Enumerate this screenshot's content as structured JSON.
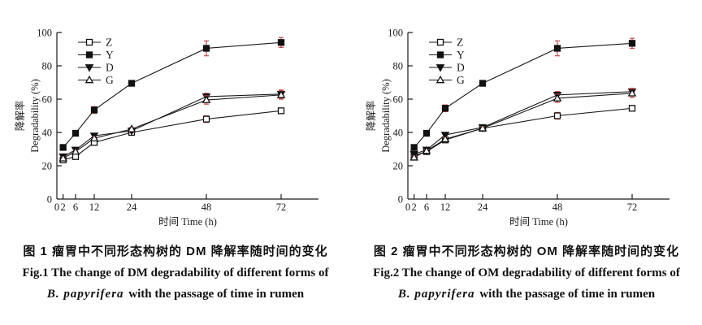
{
  "colors": {
    "line": "#1a1a1a",
    "marker_fill": "#111111",
    "marker_open_fill": "#ffffff",
    "error_bar": "#cf4545",
    "text": "#1a1a1a",
    "background": "#ffffff"
  },
  "chart_data": [
    {
      "type": "line",
      "x": [
        2,
        6,
        12,
        24,
        48,
        72
      ],
      "x_ticks": [
        0,
        2,
        6,
        12,
        24,
        48,
        72
      ],
      "xlim": [
        0,
        84
      ],
      "y_ticks": [
        0,
        20,
        40,
        60,
        80,
        100
      ],
      "ylim": [
        0,
        100
      ],
      "xlabel": "时间  Time (h)",
      "ylabel_cn": "降解率",
      "ylabel_en": "Degradability (%)",
      "grid": false,
      "legend_position": "top-left",
      "series": [
        {
          "name": "Z",
          "marker": "square-open",
          "values": [
            23.5,
            25.5,
            34,
            40,
            48,
            53
          ],
          "errors": [
            0.8,
            0.8,
            1.2,
            1,
            2,
            1.2
          ]
        },
        {
          "name": "Y",
          "marker": "square-filled",
          "values": [
            31,
            39.5,
            53.5,
            69.5,
            90.5,
            94
          ],
          "errors": [
            0.8,
            0.8,
            2,
            1,
            4.5,
            3
          ]
        },
        {
          "name": "D",
          "marker": "triangle-down-filled",
          "values": [
            25.5,
            29.5,
            38,
            41,
            61.5,
            63
          ],
          "errors": [
            0.8,
            0.8,
            1.2,
            1,
            2,
            2.5
          ]
        },
        {
          "name": "G",
          "marker": "triangle-up-open",
          "values": [
            24.5,
            28.5,
            36.5,
            42,
            59.5,
            62.5
          ],
          "errors": [
            0.8,
            0.8,
            1.2,
            1,
            2.5,
            2.5
          ]
        }
      ],
      "caption": {
        "cn": "图 1  瘤胃中不同形态构树的 DM 降解率随时间的变化",
        "en_line1": "Fig.1  The change of DM degradability of different forms of",
        "en_species": "B. papyrifera",
        "en_line2_rest": " with the passage of time in rumen"
      }
    },
    {
      "type": "line",
      "x": [
        2,
        6,
        12,
        24,
        48,
        72
      ],
      "x_ticks": [
        0,
        2,
        6,
        12,
        24,
        48,
        72
      ],
      "xlim": [
        0,
        84
      ],
      "y_ticks": [
        0,
        20,
        40,
        60,
        80,
        100
      ],
      "ylim": [
        0,
        100
      ],
      "xlabel": "时间  Time (h)",
      "ylabel_cn": "降解率",
      "ylabel_en": "Degradability (%)",
      "grid": false,
      "legend_position": "top-left",
      "series": [
        {
          "name": "Z",
          "marker": "square-open",
          "values": [
            26,
            28.5,
            35.5,
            42.5,
            50,
            54.5
          ],
          "errors": [
            0.8,
            0.8,
            1.2,
            1,
            2,
            1.2
          ]
        },
        {
          "name": "Y",
          "marker": "square-filled",
          "values": [
            31,
            39.5,
            54.5,
            69.5,
            90.5,
            93.5
          ],
          "errors": [
            0.8,
            0.8,
            2,
            1,
            4.5,
            3
          ]
        },
        {
          "name": "D",
          "marker": "triangle-down-filled",
          "values": [
            27,
            29.5,
            38.5,
            43,
            62.5,
            64.5
          ],
          "errors": [
            0.8,
            0.8,
            1.2,
            1,
            2,
            2
          ]
        },
        {
          "name": "G",
          "marker": "triangle-up-open",
          "values": [
            25,
            29,
            36,
            42.5,
            60.5,
            63.5
          ],
          "errors": [
            0.8,
            0.8,
            1.2,
            1,
            2.5,
            2.5
          ]
        }
      ],
      "caption": {
        "cn": "图 2  瘤胃中不同形态构树的 OM 降解率随时间的变化",
        "en_line1": "Fig.2  The change of OM degradability of different forms of",
        "en_species": "B. papyrifera",
        "en_line2_rest": " with the passage of time in rumen"
      }
    }
  ]
}
